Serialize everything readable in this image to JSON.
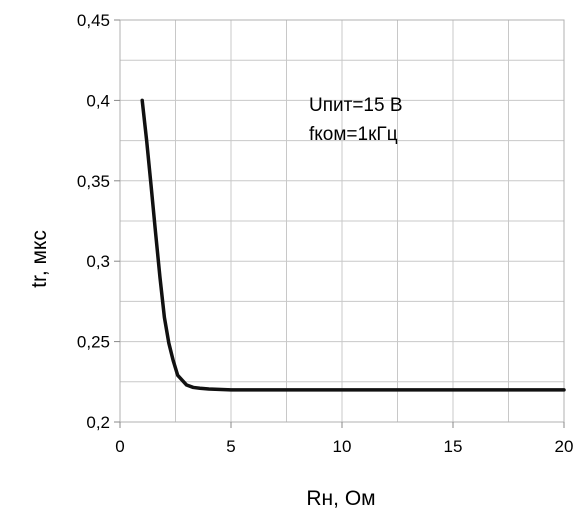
{
  "chart_data": {
    "type": "line",
    "title": "",
    "xlabel": "Rн, Ом",
    "ylabel": "tr, мкс",
    "xlim": [
      0,
      20
    ],
    "ylim": [
      0.2,
      0.45
    ],
    "x_ticks": [
      0,
      5,
      10,
      15,
      20
    ],
    "x_tick_labels": [
      "0",
      "5",
      "10",
      "15",
      "20"
    ],
    "y_ticks": [
      0.2,
      0.25,
      0.3,
      0.35,
      0.4,
      0.45
    ],
    "y_tick_labels": [
      "0,2",
      "0,25",
      "0,3",
      "0,35",
      "0,4",
      "0,45"
    ],
    "x_minor_gridlines": [
      2.5,
      7.5,
      12.5,
      17.5
    ],
    "y_minor_gridlines": [
      0.225,
      0.275,
      0.325,
      0.375,
      0.425
    ],
    "grid": true,
    "legend": "none",
    "annotations": [
      "Uпит=15 В",
      "fком=1кГц"
    ],
    "series": [
      {
        "color": "#111111",
        "x": [
          1,
          1.2,
          1.4,
          1.6,
          1.8,
          2.0,
          2.2,
          2.4,
          2.6,
          2.8,
          3.0,
          3.3,
          3.6,
          4.0,
          5,
          6,
          8,
          10,
          12,
          15,
          18,
          20
        ],
        "y": [
          0.4,
          0.375,
          0.347,
          0.318,
          0.29,
          0.265,
          0.249,
          0.238,
          0.229,
          0.226,
          0.223,
          0.2215,
          0.221,
          0.2205,
          0.22,
          0.22,
          0.22,
          0.22,
          0.22,
          0.22,
          0.22,
          0.22
        ]
      }
    ]
  }
}
